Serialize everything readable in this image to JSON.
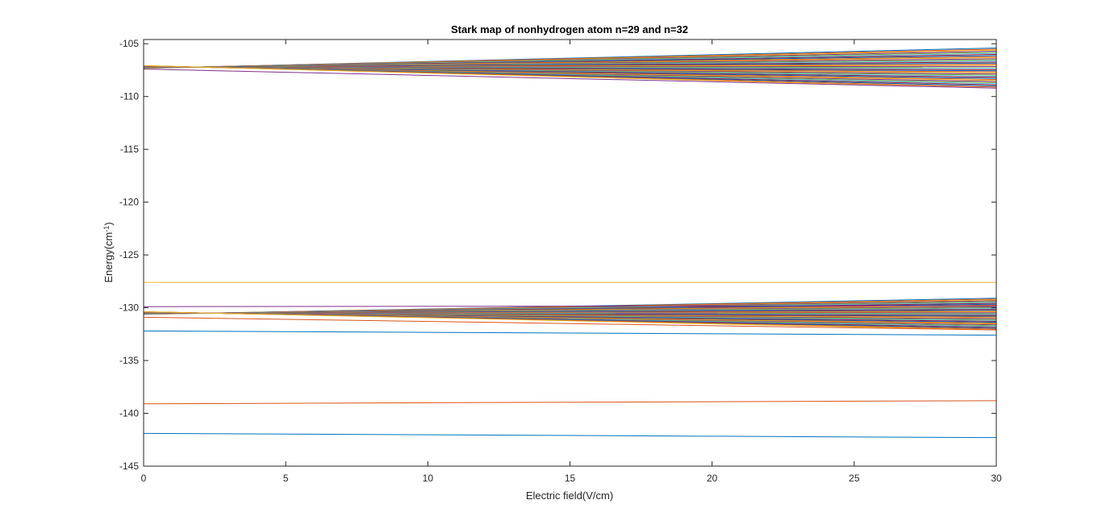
{
  "chart_data": {
    "type": "line",
    "title": "Stark map of nonhydrogen atom n=29 and n=32",
    "xlabel": "Electric field(V/cm)",
    "ylabel_main": "Energy(cm",
    "ylabel_sup": "-1",
    "ylabel_end": ")",
    "xlim": [
      0,
      30
    ],
    "ylim": [
      -145,
      -104.6
    ],
    "xticks": [
      0,
      5,
      10,
      15,
      20,
      25,
      30
    ],
    "xtick_labels": [
      "0",
      "5",
      "10",
      "15",
      "20",
      "25",
      "30"
    ],
    "yticks": [
      -145,
      -140,
      -135,
      -130,
      -125,
      -120,
      -115,
      -110,
      -105
    ],
    "ytick_labels": [
      "-145",
      "-140",
      "-135",
      "-130",
      "-125",
      "-120",
      "-115",
      "-110",
      "-105"
    ],
    "grid": false,
    "legend": "none",
    "colors": [
      "#0072BD",
      "#D95319",
      "#EDB120",
      "#7E2F8E",
      "#77AC30",
      "#4DBEEE",
      "#A2142F"
    ],
    "manifolds": [
      {
        "x": [
          0,
          30
        ],
        "start_center": -107.2,
        "end_center": -107.3,
        "end_top": -105.4,
        "end_bottom": -109.2,
        "levels": 38
      },
      {
        "x": [
          0,
          30
        ],
        "start_center": -130.5,
        "end_center": -130.6,
        "end_top": -129.1,
        "end_bottom": -132.1,
        "levels": 38
      }
    ],
    "series": [
      {
        "x": [
          0,
          30
        ],
        "y": [
          -107.4,
          -109.2
        ],
        "color": "#7E2F8E"
      },
      {
        "x": [
          0,
          30
        ],
        "y": [
          -127.6,
          -127.6
        ],
        "color": "#EDB120"
      },
      {
        "x": [
          0,
          30
        ],
        "y": [
          -129.9,
          -129.8
        ],
        "color": "#7E2F8E"
      },
      {
        "x": [
          0,
          30
        ],
        "y": [
          -130.9,
          -132.1
        ],
        "color": "#D95319"
      },
      {
        "x": [
          0,
          30
        ],
        "y": [
          -132.2,
          -132.6
        ],
        "color": "#0072BD"
      },
      {
        "x": [
          0,
          30
        ],
        "y": [
          -139.1,
          -138.8
        ],
        "color": "#D95319"
      },
      {
        "x": [
          0,
          30
        ],
        "y": [
          -141.9,
          -142.3
        ],
        "color": "#0072BD"
      }
    ]
  }
}
